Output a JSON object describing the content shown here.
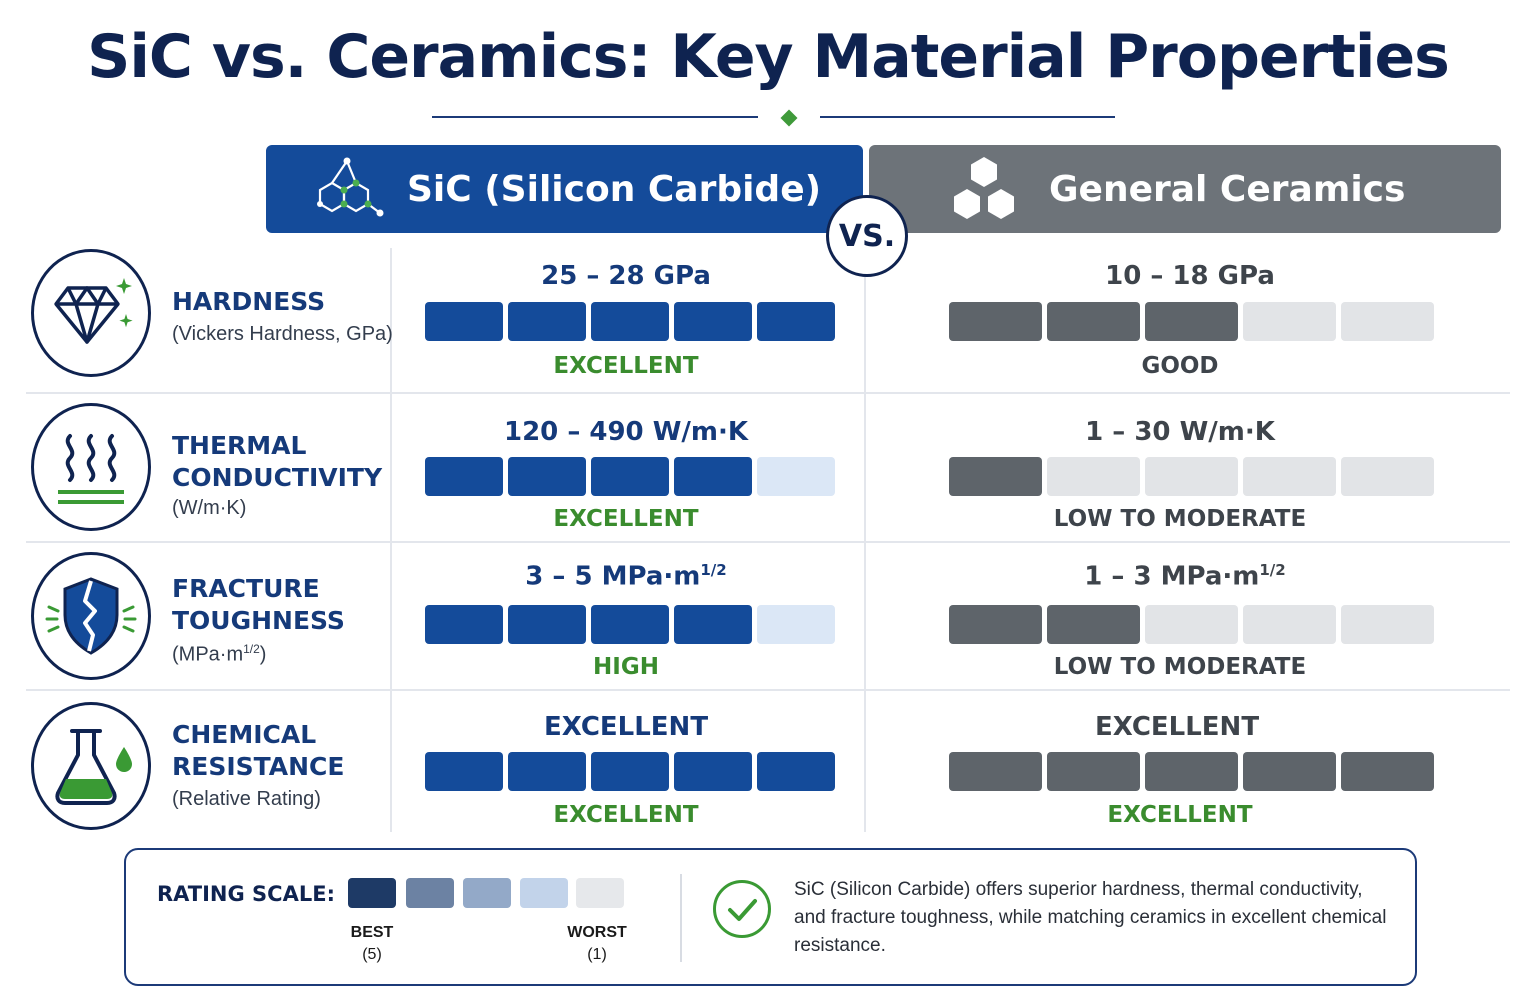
{
  "title": "SiC vs. Ceramics: Key Material Properties",
  "colors": {
    "sic_primary": "#144b9a",
    "sic_light": "#dbe7f6",
    "ceramic_primary": "#5e646a",
    "ceramic_light": "#e2e4e7",
    "good_green": "#3a8c2e",
    "navy": "#0f2350"
  },
  "columns": {
    "sic_label": "SiC (Silicon Carbide)",
    "sic_icon": "molecule-icon",
    "ceramics_label": "General Ceramics",
    "ceramics_icon": "hexagon-cluster-icon",
    "vs_label": "VS."
  },
  "properties": [
    {
      "name_lines": [
        "HARDNESS"
      ],
      "subtitle": "(Vickers Hardness, GPa)",
      "icon": "diamond-icon",
      "sic": {
        "value": "25 – 28 GPa",
        "score": 5,
        "rating": "EXCELLENT"
      },
      "ceramics": {
        "value": "10 – 18 GPa",
        "score": 3,
        "rating": "GOOD",
        "rating_green": false
      }
    },
    {
      "name_lines": [
        "THERMAL",
        "CONDUCTIVITY"
      ],
      "subtitle": "(W/m·K)",
      "icon": "heat-waves-icon",
      "sic": {
        "value": "120 – 490 W/m·K",
        "score": 4,
        "rating": "EXCELLENT"
      },
      "ceramics": {
        "value": "1 – 30 W/m·K",
        "score": 1,
        "rating": "LOW TO MODERATE",
        "rating_green": false
      }
    },
    {
      "name_lines": [
        "FRACTURE",
        "TOUGHNESS"
      ],
      "subtitle": "(MPa·m",
      "subtitle_sup": "1/2",
      "subtitle_end": ")",
      "icon": "cracked-shield-icon",
      "sic": {
        "value": "3 – 5 MPa·m",
        "value_sup": "1/2",
        "score": 4,
        "rating": "HIGH"
      },
      "ceramics": {
        "value": "1 – 3 MPa·m",
        "value_sup": "1/2",
        "score": 2,
        "rating": "LOW TO MODERATE",
        "rating_green": false
      }
    },
    {
      "name_lines": [
        "CHEMICAL",
        "RESISTANCE"
      ],
      "subtitle": "(Relative Rating)",
      "icon": "flask-icon",
      "sic": {
        "value": "EXCELLENT",
        "score": 5,
        "rating": "EXCELLENT"
      },
      "ceramics": {
        "value": "EXCELLENT",
        "score": 5,
        "rating": "EXCELLENT",
        "rating_green": true
      }
    }
  ],
  "legend": {
    "title": "RATING SCALE:",
    "scale_colors": [
      "#1e3a66",
      "#6c82a3",
      "#93a9c8",
      "#c2d3ea",
      "#e6e8eb"
    ],
    "best_label": "BEST",
    "best_value": "(5)",
    "worst_label": "WORST",
    "worst_value": "(1)",
    "check_icon": "checkmark-circle-icon",
    "summary": "SiC (Silicon Carbide) offers superior hardness, thermal conductivity, and fracture toughness, while matching ceramics in excellent chemical resistance."
  }
}
